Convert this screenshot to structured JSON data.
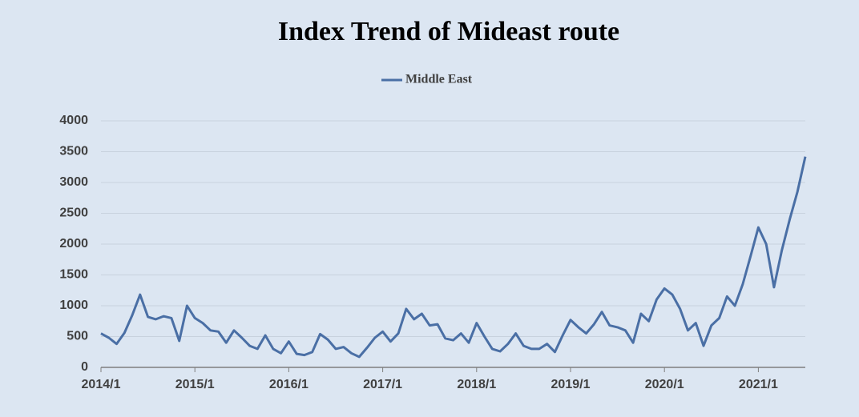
{
  "chart_data": {
    "type": "line",
    "title": "Index Trend of Mideast route",
    "categories": [
      "2014/1",
      null,
      null,
      null,
      null,
      null,
      null,
      null,
      null,
      null,
      null,
      null,
      "2015/1",
      null,
      null,
      null,
      null,
      null,
      null,
      null,
      null,
      null,
      null,
      null,
      "2016/1",
      null,
      null,
      null,
      null,
      null,
      null,
      null,
      null,
      null,
      null,
      null,
      "2017/1",
      null,
      null,
      null,
      null,
      null,
      null,
      null,
      null,
      null,
      null,
      null,
      "2018/1",
      null,
      null,
      null,
      null,
      null,
      null,
      null,
      null,
      null,
      null,
      null,
      "2019/1",
      null,
      null,
      null,
      null,
      null,
      null,
      null,
      null,
      null,
      null,
      null,
      "2020/1",
      null,
      null,
      null,
      null,
      null,
      null,
      null,
      null,
      null,
      null,
      null,
      "2021/1",
      null,
      null,
      null,
      null,
      null,
      null
    ],
    "series": [
      {
        "name": "Middle East",
        "color": "#4a6fa5",
        "values": [
          550,
          480,
          380,
          560,
          850,
          1180,
          820,
          780,
          830,
          800,
          430,
          1000,
          800,
          720,
          600,
          580,
          400,
          600,
          480,
          350,
          300,
          520,
          300,
          230,
          420,
          220,
          200,
          250,
          540,
          450,
          300,
          330,
          230,
          170,
          320,
          480,
          580,
          420,
          550,
          950,
          780,
          870,
          680,
          700,
          470,
          440,
          550,
          400,
          720,
          500,
          300,
          260,
          380,
          550,
          350,
          300,
          300,
          380,
          250,
          520,
          770,
          650,
          550,
          700,
          900,
          680,
          650,
          600,
          400,
          870,
          750,
          1100,
          1280,
          1180,
          950,
          600,
          720,
          350,
          680,
          800,
          1150,
          1000,
          1350,
          1800,
          2270,
          2000,
          1300,
          1900,
          2400,
          2850,
          3420
        ]
      }
    ],
    "ylim": [
      0,
      4000
    ],
    "yticks": [
      0,
      500,
      1000,
      1500,
      2000,
      2500,
      3000,
      3500,
      4000
    ],
    "grid": true,
    "legend": "top"
  }
}
